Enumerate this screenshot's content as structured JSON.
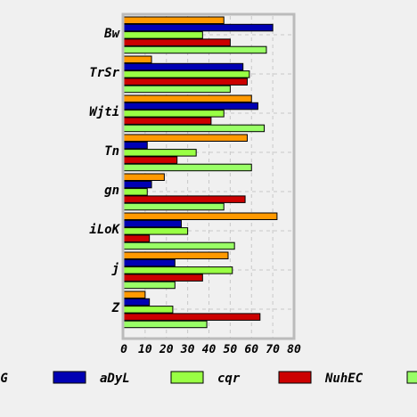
{
  "chart_data": {
    "type": "bar",
    "orientation": "horizontal",
    "categories": [
      "Bw",
      "TrSr",
      "Wjti",
      "Tn",
      "gn",
      "iLoK",
      "j",
      "Z"
    ],
    "series": [
      {
        "name": "AG",
        "color": "#ff9900",
        "values": [
          47,
          13,
          60,
          58,
          19,
          72,
          49,
          10
        ]
      },
      {
        "name": "aDyL",
        "color": "#0000b3",
        "values": [
          70,
          56,
          63,
          11,
          13,
          27,
          24,
          12
        ]
      },
      {
        "name": "cqr",
        "color": "#99ff44",
        "values": [
          37,
          59,
          47,
          34,
          11,
          30,
          51,
          23
        ]
      },
      {
        "name": "NuhEC",
        "color": "#cc0000",
        "values": [
          50,
          58,
          41,
          25,
          57,
          12,
          37,
          64
        ]
      },
      {
        "name": "",
        "color": "#99ff66",
        "values": [
          67,
          50,
          66,
          60,
          47,
          52,
          24,
          39
        ]
      }
    ],
    "xlim": [
      0,
      80
    ],
    "xticks": [
      "0",
      "10",
      "20",
      "30",
      "40",
      "50",
      "60",
      "70",
      "80"
    ],
    "grid": true,
    "legend_position": "bottom"
  }
}
